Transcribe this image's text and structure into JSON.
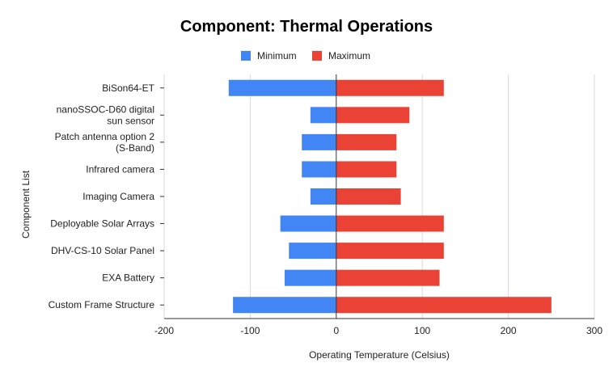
{
  "chart_data": {
    "type": "bar",
    "orientation": "horizontal",
    "title": "Component: Thermal Operations",
    "xlabel": "Operating Temperature (Celsius)",
    "ylabel": "Component List",
    "xlim": [
      -200,
      300
    ],
    "xticks": [
      -200,
      -100,
      0,
      100,
      200,
      300
    ],
    "grid": true,
    "legend_position": "top",
    "categories": [
      "BiSon64-ET",
      "nanoSSOC-D60 digital sun sensor",
      "Patch antenna option 2 (S-Band)",
      "Infrared camera",
      "Imaging Camera",
      "Deployable Solar Arrays",
      "DHV-CS-10 Solar Panel",
      "EXA Battery",
      "Custom Frame Structure"
    ],
    "category_lines": [
      [
        "BiSon64-ET"
      ],
      [
        "nanoSSOC-D60 digital",
        "sun sensor"
      ],
      [
        "Patch antenna option 2",
        "(S-Band)"
      ],
      [
        "Infrared camera"
      ],
      [
        "Imaging Camera"
      ],
      [
        "Deployable Solar Arrays"
      ],
      [
        "DHV-CS-10 Solar Panel"
      ],
      [
        "EXA Battery"
      ],
      [
        "Custom Frame Structure"
      ]
    ],
    "series": [
      {
        "name": "Minimum",
        "color": "#4285f4",
        "values": [
          -125,
          -30,
          -40,
          -40,
          -30,
          -65,
          -55,
          -60,
          -120
        ]
      },
      {
        "name": "Maximum",
        "color": "#ea4335",
        "values": [
          125,
          85,
          70,
          70,
          75,
          125,
          125,
          120,
          250
        ]
      }
    ]
  }
}
